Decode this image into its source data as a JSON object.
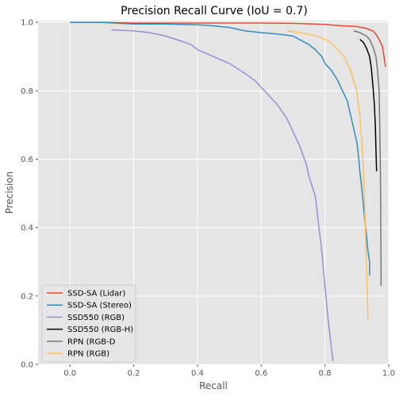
{
  "chart_data": {
    "type": "line",
    "title": "Precision Recall Curve (IoU = 0.7)",
    "xlabel": "Recall",
    "ylabel": "Precision",
    "xlim": [
      -0.1,
      1.0
    ],
    "ylim": [
      0.0,
      1.005
    ],
    "xticks": [
      "0.0",
      "0.2",
      "0.4",
      "0.6",
      "0.8",
      "1.0"
    ],
    "yticks": [
      "0.0",
      "0.2",
      "0.4",
      "0.6",
      "0.8",
      "1.0"
    ],
    "xtick_values": [
      0.0,
      0.2,
      0.4,
      0.6,
      0.8,
      1.0
    ],
    "ytick_values": [
      0.0,
      0.2,
      0.4,
      0.6,
      0.8,
      1.0
    ],
    "grid": true,
    "legend_position": "bottom-left",
    "background": "#e5e5e5",
    "series": [
      {
        "name": "SSD-SA (Lidar)",
        "color": "#e24a33",
        "x": [
          0.0,
          0.1,
          0.2,
          0.3,
          0.4,
          0.5,
          0.6,
          0.7,
          0.8,
          0.85,
          0.9,
          0.93,
          0.95,
          0.96,
          0.97,
          0.98,
          0.985,
          0.99
        ],
        "y": [
          1.0,
          1.0,
          0.998,
          0.998,
          0.998,
          0.998,
          0.998,
          0.997,
          0.994,
          0.99,
          0.988,
          0.982,
          0.975,
          0.965,
          0.95,
          0.93,
          0.9,
          0.87
        ]
      },
      {
        "name": "SSD-SA (Stereo)",
        "color": "#348abd",
        "x": [
          0.0,
          0.1,
          0.2,
          0.3,
          0.4,
          0.45,
          0.5,
          0.55,
          0.6,
          0.65,
          0.7,
          0.72,
          0.75,
          0.77,
          0.79,
          0.8,
          0.82,
          0.84,
          0.86,
          0.87,
          0.88,
          0.89,
          0.9,
          0.905,
          0.91,
          0.915,
          0.92,
          0.925,
          0.93,
          0.935,
          0.94,
          0.94
        ],
        "y": [
          1.0,
          1.0,
          0.995,
          0.995,
          0.993,
          0.99,
          0.985,
          0.975,
          0.97,
          0.966,
          0.96,
          0.95,
          0.935,
          0.92,
          0.9,
          0.88,
          0.86,
          0.83,
          0.79,
          0.77,
          0.73,
          0.69,
          0.65,
          0.61,
          0.56,
          0.52,
          0.47,
          0.42,
          0.38,
          0.33,
          0.3,
          0.26
        ]
      },
      {
        "name": "SSD550 (RGB)",
        "color": "#988ed5",
        "x": [
          0.13,
          0.2,
          0.25,
          0.3,
          0.35,
          0.38,
          0.4,
          0.45,
          0.5,
          0.55,
          0.58,
          0.6,
          0.62,
          0.65,
          0.68,
          0.7,
          0.72,
          0.74,
          0.75,
          0.76,
          0.77,
          0.775,
          0.78,
          0.785,
          0.79,
          0.795,
          0.8,
          0.805,
          0.81,
          0.815,
          0.82,
          0.825
        ],
        "y": [
          0.978,
          0.975,
          0.97,
          0.96,
          0.945,
          0.935,
          0.92,
          0.9,
          0.88,
          0.85,
          0.83,
          0.81,
          0.79,
          0.76,
          0.72,
          0.68,
          0.64,
          0.59,
          0.55,
          0.52,
          0.49,
          0.45,
          0.41,
          0.37,
          0.33,
          0.28,
          0.23,
          0.18,
          0.13,
          0.09,
          0.05,
          0.01
        ]
      },
      {
        "name": "SSD550 (RGB-H)",
        "color": "#000000",
        "x": [
          0.91,
          0.92,
          0.93,
          0.94,
          0.945,
          0.95,
          0.955,
          0.958,
          0.96,
          0.962
        ],
        "y": [
          0.95,
          0.942,
          0.925,
          0.9,
          0.87,
          0.82,
          0.76,
          0.7,
          0.63,
          0.565
        ]
      },
      {
        "name": "RPN (RGB-D",
        "color": "#777777",
        "x": [
          0.89,
          0.91,
          0.93,
          0.94,
          0.95,
          0.96,
          0.965,
          0.97,
          0.972,
          0.974,
          0.975,
          0.976
        ],
        "y": [
          0.975,
          0.97,
          0.96,
          0.95,
          0.93,
          0.9,
          0.86,
          0.8,
          0.7,
          0.55,
          0.4,
          0.23
        ]
      },
      {
        "name": "RPN (RGB)",
        "color": "#fbc15e",
        "x": [
          0.68,
          0.72,
          0.75,
          0.78,
          0.8,
          0.82,
          0.84,
          0.86,
          0.87,
          0.88,
          0.89,
          0.9,
          0.905,
          0.91,
          0.915,
          0.92,
          0.925,
          0.93,
          0.935
        ],
        "y": [
          0.975,
          0.97,
          0.965,
          0.958,
          0.95,
          0.94,
          0.92,
          0.9,
          0.88,
          0.86,
          0.83,
          0.8,
          0.76,
          0.72,
          0.66,
          0.58,
          0.45,
          0.3,
          0.13
        ]
      }
    ]
  }
}
